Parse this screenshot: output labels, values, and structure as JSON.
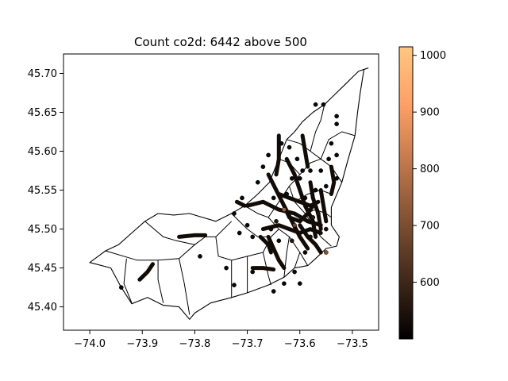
{
  "chart_data": {
    "type": "scatter",
    "title": "Count co2d: 6442 above 500",
    "xlabel": "",
    "ylabel": "",
    "xlim": [
      -74.05,
      -73.45
    ],
    "ylim": [
      45.37,
      45.725
    ],
    "x_ticks": [
      -74.0,
      -73.9,
      -73.8,
      -73.7,
      -73.6,
      -73.5
    ],
    "x_tick_labels": [
      "−74.0",
      "−73.9",
      "−73.8",
      "−73.7",
      "−73.6",
      "−73.5"
    ],
    "y_ticks": [
      45.4,
      45.45,
      45.5,
      45.55,
      45.6,
      45.65,
      45.7
    ],
    "y_tick_labels": [
      "45.40",
      "45.45",
      "45.50",
      "45.55",
      "45.60",
      "45.65",
      "45.70"
    ],
    "grid": false,
    "colorbar": {
      "cmap": "copper",
      "vmin": 500,
      "vmax": 1015,
      "ticks": [
        600,
        700,
        800,
        900,
        1000
      ],
      "tick_labels": [
        "600",
        "700",
        "800",
        "900",
        "1000"
      ]
    },
    "colors": {
      "map_fill": "#ffffff",
      "map_edge": "#000000",
      "copper_low": "#000000",
      "copper_high": "#ffc77f"
    },
    "boundary_outline": [
      [
        -74.0,
        45.457
      ],
      [
        -73.96,
        45.45
      ],
      [
        -73.94,
        45.425
      ],
      [
        -73.92,
        45.404
      ],
      [
        -73.89,
        45.412
      ],
      [
        -73.86,
        45.402
      ],
      [
        -73.83,
        45.4
      ],
      [
        -73.81,
        45.384
      ],
      [
        -73.8,
        45.392
      ],
      [
        -73.77,
        45.405
      ],
      [
        -73.73,
        45.412
      ],
      [
        -73.7,
        45.418
      ],
      [
        -73.66,
        45.428
      ],
      [
        -73.63,
        45.438
      ],
      [
        -73.61,
        45.45
      ],
      [
        -73.585,
        45.453
      ],
      [
        -73.57,
        45.462
      ],
      [
        -73.55,
        45.475
      ],
      [
        -73.53,
        45.478
      ],
      [
        -73.525,
        45.49
      ],
      [
        -73.54,
        45.505
      ],
      [
        -73.54,
        45.528
      ],
      [
        -73.52,
        45.56
      ],
      [
        -73.51,
        45.585
      ],
      [
        -73.495,
        45.62
      ],
      [
        -73.49,
        45.65
      ],
      [
        -73.485,
        45.675
      ],
      [
        -73.478,
        45.705
      ],
      [
        -73.47,
        45.707
      ],
      [
        -73.488,
        45.703
      ],
      [
        -73.5,
        45.695
      ],
      [
        -73.515,
        45.685
      ],
      [
        -73.535,
        45.672
      ],
      [
        -73.553,
        45.66
      ],
      [
        -73.575,
        45.65
      ],
      [
        -73.595,
        45.638
      ],
      [
        -73.61,
        45.625
      ],
      [
        -73.625,
        45.615
      ],
      [
        -73.64,
        45.59
      ],
      [
        -73.658,
        45.56
      ],
      [
        -73.68,
        45.545
      ],
      [
        -73.705,
        45.53
      ],
      [
        -73.73,
        45.52
      ],
      [
        -73.76,
        45.51
      ],
      [
        -73.785,
        45.515
      ],
      [
        -73.81,
        45.52
      ],
      [
        -73.84,
        45.518
      ],
      [
        -73.87,
        45.52
      ],
      [
        -73.895,
        45.51
      ],
      [
        -73.92,
        45.495
      ],
      [
        -73.945,
        45.48
      ],
      [
        -73.97,
        45.472
      ],
      [
        -74.0,
        45.457
      ]
    ],
    "district_borders": [
      [
        [
          -73.97,
          45.472
        ],
        [
          -73.91,
          45.46
        ],
        [
          -73.87,
          45.46
        ],
        [
          -73.83,
          45.462
        ]
      ],
      [
        [
          -73.93,
          45.462
        ],
        [
          -73.935,
          45.43
        ],
        [
          -73.92,
          45.405
        ]
      ],
      [
        [
          -73.87,
          45.46
        ],
        [
          -73.87,
          45.435
        ],
        [
          -73.86,
          45.405
        ]
      ],
      [
        [
          -73.83,
          45.462
        ],
        [
          -73.82,
          45.43
        ],
        [
          -73.81,
          45.39
        ]
      ],
      [
        [
          -73.83,
          45.462
        ],
        [
          -73.8,
          45.48
        ],
        [
          -73.78,
          45.49
        ],
        [
          -73.76,
          45.49
        ],
        [
          -73.73,
          45.51
        ]
      ],
      [
        [
          -73.895,
          45.51
        ],
        [
          -73.86,
          45.49
        ],
        [
          -73.835,
          45.485
        ],
        [
          -73.8,
          45.48
        ]
      ],
      [
        [
          -73.76,
          45.49
        ],
        [
          -73.755,
          45.465
        ],
        [
          -73.73,
          45.46
        ],
        [
          -73.7,
          45.465
        ],
        [
          -73.67,
          45.47
        ]
      ],
      [
        [
          -73.73,
          45.46
        ],
        [
          -73.73,
          45.412
        ]
      ],
      [
        [
          -73.7,
          45.465
        ],
        [
          -73.7,
          45.418
        ]
      ],
      [
        [
          -73.67,
          45.47
        ],
        [
          -73.66,
          45.44
        ],
        [
          -73.655,
          45.428
        ]
      ],
      [
        [
          -73.67,
          45.47
        ],
        [
          -73.655,
          45.49
        ],
        [
          -73.64,
          45.5
        ],
        [
          -73.62,
          45.49
        ],
        [
          -73.6,
          45.47
        ],
        [
          -73.585,
          45.453
        ]
      ],
      [
        [
          -73.73,
          45.52
        ],
        [
          -73.7,
          45.5
        ],
        [
          -73.68,
          45.49
        ],
        [
          -73.655,
          45.49
        ]
      ],
      [
        [
          -73.705,
          45.53
        ],
        [
          -73.68,
          45.52
        ],
        [
          -73.66,
          45.515
        ],
        [
          -73.64,
          45.5
        ]
      ],
      [
        [
          -73.66,
          45.515
        ],
        [
          -73.64,
          45.535
        ],
        [
          -73.62,
          45.555
        ],
        [
          -73.6,
          45.57
        ],
        [
          -73.58,
          45.585
        ],
        [
          -73.56,
          45.59
        ]
      ],
      [
        [
          -73.64,
          45.59
        ],
        [
          -73.62,
          45.585
        ],
        [
          -73.6,
          45.57
        ]
      ],
      [
        [
          -73.62,
          45.555
        ],
        [
          -73.61,
          45.535
        ],
        [
          -73.59,
          45.52
        ],
        [
          -73.575,
          45.505
        ],
        [
          -73.56,
          45.49
        ],
        [
          -73.54,
          45.478
        ]
      ],
      [
        [
          -73.61,
          45.535
        ],
        [
          -73.585,
          45.545
        ],
        [
          -73.56,
          45.55
        ],
        [
          -73.54,
          45.545
        ]
      ],
      [
        [
          -73.59,
          45.52
        ],
        [
          -73.57,
          45.525
        ],
        [
          -73.55,
          45.52
        ],
        [
          -73.54,
          45.515
        ]
      ],
      [
        [
          -73.625,
          45.615
        ],
        [
          -73.6,
          45.61
        ],
        [
          -73.58,
          45.6
        ],
        [
          -73.56,
          45.59
        ],
        [
          -73.54,
          45.58
        ],
        [
          -73.52,
          45.56
        ]
      ],
      [
        [
          -73.58,
          45.6
        ],
        [
          -73.57,
          45.625
        ],
        [
          -73.56,
          45.64
        ],
        [
          -73.553,
          45.66
        ]
      ],
      [
        [
          -73.56,
          45.59
        ],
        [
          -73.545,
          45.615
        ],
        [
          -73.52,
          45.625
        ],
        [
          -73.495,
          45.62
        ]
      ],
      [
        [
          -73.62,
          45.49
        ],
        [
          -73.625,
          45.47
        ],
        [
          -73.63,
          45.438
        ]
      ],
      [
        [
          -73.6,
          45.47
        ],
        [
          -73.61,
          45.45
        ]
      ]
    ],
    "track_segments": [
      [
        [
          -73.7,
          45.53
        ],
        [
          -73.67,
          45.535
        ],
        [
          -73.64,
          45.525
        ],
        [
          -73.61,
          45.52
        ],
        [
          -73.585,
          45.51
        ],
        [
          -73.56,
          45.505
        ]
      ],
      [
        [
          -73.67,
          45.5
        ],
        [
          -73.64,
          45.505
        ],
        [
          -73.62,
          45.5
        ],
        [
          -73.6,
          45.495
        ],
        [
          -73.58,
          45.5
        ],
        [
          -73.56,
          45.495
        ]
      ],
      [
        [
          -73.66,
          45.57
        ],
        [
          -73.645,
          45.55
        ],
        [
          -73.63,
          45.53
        ],
        [
          -73.615,
          45.51
        ],
        [
          -73.6,
          45.49
        ],
        [
          -73.585,
          45.475
        ]
      ],
      [
        [
          -73.625,
          45.59
        ],
        [
          -73.61,
          45.57
        ],
        [
          -73.6,
          45.55
        ],
        [
          -73.59,
          45.53
        ],
        [
          -73.575,
          45.51
        ],
        [
          -73.57,
          45.49
        ]
      ],
      [
        [
          -73.64,
          45.545
        ],
        [
          -73.62,
          45.54
        ],
        [
          -73.6,
          45.535
        ],
        [
          -73.58,
          45.53
        ],
        [
          -73.565,
          45.535
        ]
      ],
      [
        [
          -73.66,
          45.49
        ],
        [
          -73.65,
          45.475
        ],
        [
          -73.64,
          45.46
        ],
        [
          -73.63,
          45.45
        ]
      ],
      [
        [
          -73.6,
          45.505
        ],
        [
          -73.585,
          45.49
        ],
        [
          -73.57,
          45.48
        ],
        [
          -73.56,
          45.47
        ]
      ],
      [
        [
          -73.63,
          45.53
        ],
        [
          -73.62,
          45.515
        ],
        [
          -73.6,
          45.51
        ],
        [
          -73.585,
          45.52
        ],
        [
          -73.575,
          45.53
        ]
      ],
      [
        [
          -73.58,
          45.56
        ],
        [
          -73.575,
          45.54
        ],
        [
          -73.565,
          45.52
        ],
        [
          -73.56,
          45.5
        ]
      ],
      [
        [
          -73.69,
          45.45
        ],
        [
          -73.67,
          45.45
        ],
        [
          -73.65,
          45.448
        ]
      ],
      [
        [
          -73.83,
          45.49
        ],
        [
          -73.8,
          45.492
        ],
        [
          -73.78,
          45.492
        ]
      ],
      [
        [
          -73.905,
          45.435
        ],
        [
          -73.89,
          45.445
        ],
        [
          -73.88,
          45.455
        ]
      ],
      [
        [
          -73.64,
          45.62
        ],
        [
          -73.64,
          45.59
        ],
        [
          -73.645,
          45.57
        ]
      ],
      [
        [
          -73.595,
          45.62
        ],
        [
          -73.59,
          45.6
        ],
        [
          -73.585,
          45.58
        ]
      ],
      [
        [
          -73.54,
          45.58
        ],
        [
          -73.535,
          45.56
        ],
        [
          -73.54,
          45.545
        ]
      ],
      [
        [
          -73.56,
          45.55
        ],
        [
          -73.555,
          45.53
        ],
        [
          -73.55,
          45.51
        ]
      ],
      [
        [
          -73.72,
          45.535
        ],
        [
          -73.705,
          45.53
        ]
      ],
      [
        [
          -73.675,
          45.49
        ],
        [
          -73.66,
          45.48
        ],
        [
          -73.655,
          45.47
        ]
      ]
    ],
    "points": [
      {
        "x": -73.94,
        "y": 45.425,
        "v": 520
      },
      {
        "x": -73.79,
        "y": 45.465,
        "v": 520
      },
      {
        "x": -73.725,
        "y": 45.428,
        "v": 520
      },
      {
        "x": -73.69,
        "y": 45.445,
        "v": 520
      },
      {
        "x": -73.63,
        "y": 45.43,
        "v": 520
      },
      {
        "x": -73.65,
        "y": 45.42,
        "v": 520
      },
      {
        "x": -73.6,
        "y": 45.43,
        "v": 520
      },
      {
        "x": -73.61,
        "y": 45.445,
        "v": 520
      },
      {
        "x": -73.55,
        "y": 45.47,
        "v": 720
      },
      {
        "x": -73.63,
        "y": 45.525,
        "v": 760
      },
      {
        "x": -73.61,
        "y": 45.505,
        "v": 680
      },
      {
        "x": -73.715,
        "y": 45.495,
        "v": 520
      },
      {
        "x": -73.7,
        "y": 45.505,
        "v": 520
      },
      {
        "x": -73.725,
        "y": 45.52,
        "v": 520
      },
      {
        "x": -73.71,
        "y": 45.54,
        "v": 520
      },
      {
        "x": -73.68,
        "y": 45.56,
        "v": 520
      },
      {
        "x": -73.67,
        "y": 45.58,
        "v": 520
      },
      {
        "x": -73.66,
        "y": 45.595,
        "v": 520
      },
      {
        "x": -73.635,
        "y": 45.61,
        "v": 520
      },
      {
        "x": -73.62,
        "y": 45.605,
        "v": 520
      },
      {
        "x": -73.605,
        "y": 45.59,
        "v": 520
      },
      {
        "x": -73.595,
        "y": 45.575,
        "v": 520
      },
      {
        "x": -73.58,
        "y": 45.575,
        "v": 520
      },
      {
        "x": -73.56,
        "y": 45.575,
        "v": 520
      },
      {
        "x": -73.545,
        "y": 45.59,
        "v": 520
      },
      {
        "x": -73.54,
        "y": 45.61,
        "v": 520
      },
      {
        "x": -73.53,
        "y": 45.635,
        "v": 520
      },
      {
        "x": -73.53,
        "y": 45.645,
        "v": 520
      },
      {
        "x": -73.555,
        "y": 45.66,
        "v": 520
      },
      {
        "x": -73.57,
        "y": 45.66,
        "v": 520
      },
      {
        "x": -73.53,
        "y": 45.595,
        "v": 520
      },
      {
        "x": -73.53,
        "y": 45.565,
        "v": 520
      },
      {
        "x": -73.55,
        "y": 45.555,
        "v": 520
      },
      {
        "x": -73.57,
        "y": 45.55,
        "v": 520
      },
      {
        "x": -73.6,
        "y": 45.565,
        "v": 520
      },
      {
        "x": -73.615,
        "y": 45.565,
        "v": 520
      },
      {
        "x": -73.69,
        "y": 45.49,
        "v": 520
      },
      {
        "x": -73.74,
        "y": 45.45,
        "v": 520
      },
      {
        "x": -73.65,
        "y": 45.54,
        "v": 520
      },
      {
        "x": -73.59,
        "y": 45.47,
        "v": 520
      },
      {
        "x": -73.615,
        "y": 45.485,
        "v": 560
      },
      {
        "x": -73.575,
        "y": 45.515,
        "v": 560
      },
      {
        "x": -73.58,
        "y": 45.49,
        "v": 540
      },
      {
        "x": -73.565,
        "y": 45.52,
        "v": 560
      },
      {
        "x": -73.55,
        "y": 45.5,
        "v": 540
      },
      {
        "x": -73.59,
        "y": 45.54,
        "v": 520
      },
      {
        "x": -73.625,
        "y": 45.545,
        "v": 520
      },
      {
        "x": -73.645,
        "y": 45.51,
        "v": 560
      },
      {
        "x": -73.655,
        "y": 45.5,
        "v": 520
      },
      {
        "x": -73.64,
        "y": 45.485,
        "v": 520
      }
    ]
  }
}
